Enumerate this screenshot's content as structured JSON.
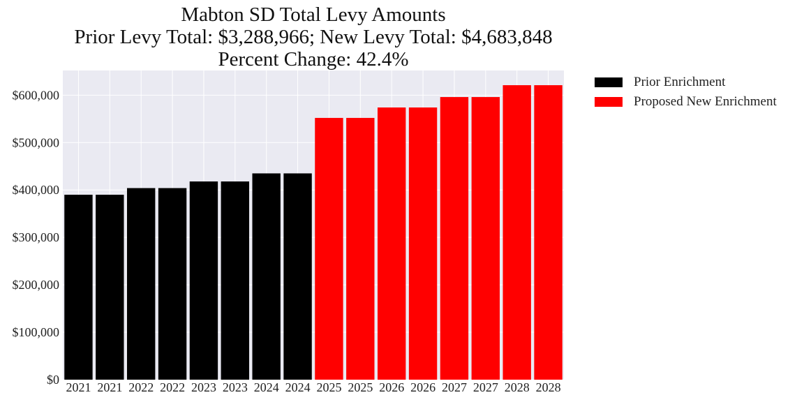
{
  "chart_data": {
    "type": "bar",
    "title": "Mabton SD Total Levy Amounts",
    "subtitle_lines": [
      "Prior Levy Total:  $3,288,966; New Levy Total: $4,683,848",
      "Percent Change: 42.4%"
    ],
    "categories": [
      "2021",
      "2021",
      "2022",
      "2022",
      "2023",
      "2023",
      "2024",
      "2024",
      "2025",
      "2025",
      "2026",
      "2026",
      "2027",
      "2027",
      "2028",
      "2028"
    ],
    "values": [
      390000,
      390000,
      404000,
      404000,
      418000,
      418000,
      435000,
      435000,
      552000,
      552000,
      574000,
      574000,
      596000,
      596000,
      621000,
      621000
    ],
    "bar_series_index": [
      0,
      0,
      0,
      0,
      0,
      0,
      0,
      0,
      1,
      1,
      1,
      1,
      1,
      1,
      1,
      1
    ],
    "series": [
      {
        "name": "Prior Enrichment",
        "color": "#000000"
      },
      {
        "name": "Proposed New Enrichment",
        "color": "#ff0000"
      }
    ],
    "yticks": [
      "$0",
      "$100,000",
      "$200,000",
      "$300,000",
      "$400,000",
      "$500,000",
      "$600,000"
    ],
    "ytick_values": [
      0,
      100000,
      200000,
      300000,
      400000,
      500000,
      600000
    ],
    "ylim": [
      0,
      652000
    ],
    "xlabel": "",
    "ylabel": "",
    "grid": true,
    "legend_position": "outside right top",
    "background_color": "#eaeaf2",
    "grid_color": "#ffffff"
  }
}
